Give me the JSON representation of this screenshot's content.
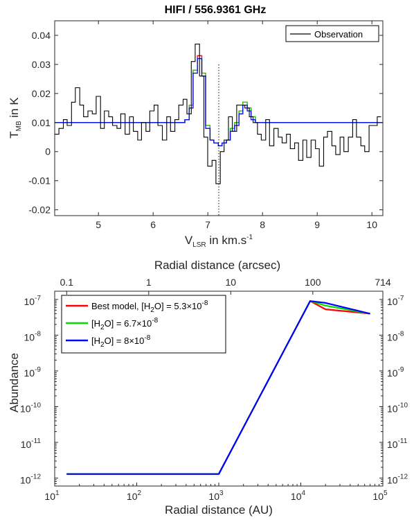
{
  "chart_data": [
    {
      "type": "line",
      "title": "HIFI / 556.9361 GHz",
      "xlabel": "V",
      "xlabel_sub": "LSR",
      "xlabel_rest": " in km.s",
      "xlabel_sup": "-1",
      "ylabel": "T",
      "ylabel_sub": "MB",
      "ylabel_rest": " in K",
      "xlim": [
        4.2,
        10.2
      ],
      "ylim": [
        -0.022,
        0.045
      ],
      "xticks": [
        5,
        6,
        7,
        8,
        9,
        10
      ],
      "xtick_labels": [
        "5",
        "6",
        "7",
        "8",
        "9",
        "10"
      ],
      "yticks": [
        -0.02,
        -0.01,
        0,
        0.01,
        0.02,
        0.03,
        0.04
      ],
      "ytick_labels": [
        "-0.02",
        "-0.01",
        "0",
        "0.01",
        "0.02",
        "0.03",
        "0.04"
      ],
      "vline_x": 7.2,
      "legend": [
        "Observation"
      ],
      "legend_position": "top-right",
      "observation": {
        "name": "Observation",
        "color": "#000000",
        "step_width": 0.0756,
        "x": [
          4.24,
          4.32,
          4.39,
          4.47,
          4.54,
          4.62,
          4.69,
          4.77,
          4.85,
          4.92,
          5.0,
          5.07,
          5.15,
          5.22,
          5.3,
          5.37,
          5.45,
          5.53,
          5.6,
          5.68,
          5.75,
          5.83,
          5.9,
          5.98,
          6.05,
          6.13,
          6.21,
          6.28,
          6.36,
          6.43,
          6.51,
          6.58,
          6.66,
          6.73,
          6.81,
          6.89,
          6.96,
          7.04,
          7.11,
          7.19,
          7.26,
          7.34,
          7.41,
          7.49,
          7.57,
          7.64,
          7.72,
          7.79,
          7.87,
          7.94,
          8.02,
          8.09,
          8.17,
          8.25,
          8.32,
          8.4,
          8.47,
          8.55,
          8.62,
          8.7,
          8.77,
          8.85,
          8.93,
          9.0,
          9.08,
          9.15,
          9.23,
          9.3,
          9.38,
          9.45,
          9.53,
          9.61,
          9.68,
          9.76,
          9.83,
          9.91,
          9.98,
          10.06,
          10.13
        ],
        "y": [
          0.006,
          0.008,
          0.011,
          0.009,
          0.017,
          0.022,
          0.016,
          0.012,
          0.014,
          0.013,
          0.019,
          0.008,
          0.014,
          0.012,
          0.009,
          0.008,
          0.013,
          0.006,
          0.012,
          0.007,
          0.004,
          0.01,
          0.007,
          0.014,
          0.016,
          0.009,
          0.004,
          0.012,
          0.007,
          0.011,
          0.016,
          0.018,
          0.013,
          0.031,
          0.037,
          0.026,
          0.005,
          -0.005,
          -0.003,
          -0.011,
          0.0,
          0.004,
          0.012,
          0.007,
          0.016,
          0.016,
          0.015,
          0.012,
          0.01,
          0.006,
          0.004,
          0.011,
          0.002,
          0.008,
          0.005,
          0.003,
          0.006,
          0.001,
          0.003,
          -0.003,
          0.004,
          -0.002,
          0.004,
          0.001,
          -0.005,
          0.005,
          0.007,
          0.002,
          -0.001,
          0.005,
          0.0,
          0.005,
          0.011,
          0.005,
          0.002,
          0.0,
          0.009,
          0.009,
          0.012
        ]
      },
      "models": {
        "colors": [
          "#ff0000",
          "#00dd00",
          "#0000ff"
        ],
        "x": [
          4.2,
          6.4,
          6.58,
          6.66,
          6.73,
          6.81,
          6.89,
          6.96,
          7.04,
          7.11,
          7.19,
          7.26,
          7.34,
          7.41,
          7.49,
          7.57,
          7.64,
          7.72,
          7.79,
          7.87,
          7.94,
          8.02,
          10.2
        ],
        "y_blue": [
          0.01,
          0.01,
          0.011,
          0.015,
          0.027,
          0.032,
          0.026,
          0.008,
          0.004,
          0.003,
          0.002,
          0.003,
          0.004,
          0.007,
          0.009,
          0.013,
          0.016,
          0.014,
          0.011,
          0.01,
          0.01,
          0.01,
          0.01
        ],
        "y_green": [
          0.01,
          0.01,
          0.011,
          0.016,
          0.028,
          0.032,
          0.027,
          0.009,
          0.004,
          0.003,
          0.002,
          0.003,
          0.004,
          0.008,
          0.01,
          0.014,
          0.017,
          0.015,
          0.012,
          0.01,
          0.01,
          0.01,
          0.01
        ],
        "y_red": [
          0.01,
          0.01,
          0.011,
          0.016,
          0.028,
          0.033,
          0.027,
          0.009,
          0.004,
          0.003,
          0.002,
          0.003,
          0.004,
          0.008,
          0.01,
          0.014,
          0.017,
          0.015,
          0.012,
          0.01,
          0.01,
          0.01,
          0.01
        ]
      }
    },
    {
      "type": "line",
      "xscale": "log",
      "yscale": "log",
      "xlabel": "Radial distance (AU)",
      "ylabel": "Abundance",
      "top_xlabel": "Radial distance (arcsec)",
      "xlim": [
        10,
        100000
      ],
      "ylim": [
        6e-13,
        1.7e-07
      ],
      "xtick_exponents": [
        1,
        2,
        3,
        4,
        5
      ],
      "ytick_exponents": [
        -12,
        -11,
        -10,
        -9,
        -8,
        -7
      ],
      "top_ticks": [
        {
          "au": 14,
          "label": "0.1"
        },
        {
          "au": 140,
          "label": "1"
        },
        {
          "au": 1400,
          "label": "10"
        },
        {
          "au": 14000,
          "label": "100"
        },
        {
          "au": 100000,
          "label": "714"
        }
      ],
      "legend_position": "top-left",
      "series": [
        {
          "name": "Best model, [H",
          "sub": "2",
          "name_mid": "O] = 5.3×10",
          "sup": "-8",
          "color": "#ff0000",
          "x": [
            14,
            1000,
            13000,
            20000,
            70000
          ],
          "y": [
            1.3e-12,
            1.3e-12,
            9e-08,
            5.3e-08,
            4e-08
          ]
        },
        {
          "name": "[H",
          "sub": "2",
          "name_mid": "O] = 6.7×10",
          "sup": "-8",
          "color": "#00dd00",
          "x": [
            14,
            1000,
            13000,
            20000,
            70000
          ],
          "y": [
            1.3e-12,
            1.3e-12,
            9e-08,
            6.7e-08,
            4e-08
          ]
        },
        {
          "name": "[H",
          "sub": "2",
          "name_mid": "O] = 8×10",
          "sup": "-8",
          "color": "#0000ff",
          "x": [
            14,
            1000,
            13000,
            20000,
            70000
          ],
          "y": [
            1.3e-12,
            1.3e-12,
            9e-08,
            8e-08,
            4e-08
          ]
        }
      ]
    }
  ]
}
